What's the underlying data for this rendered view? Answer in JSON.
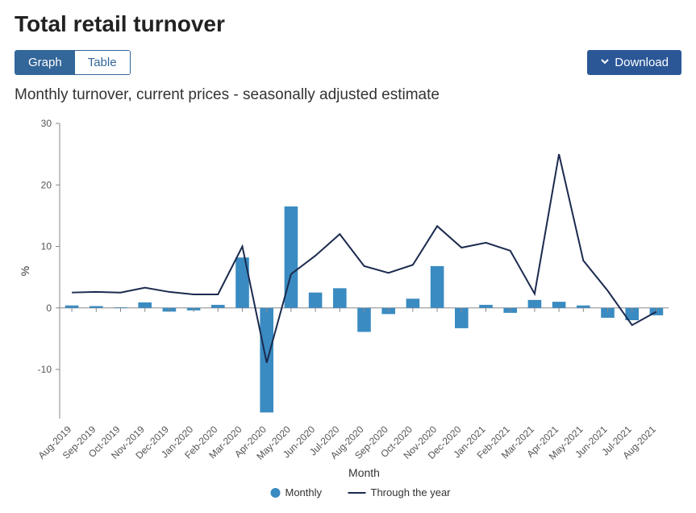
{
  "title": "Total retail turnover",
  "tabs": {
    "graph": "Graph",
    "table": "Table",
    "active": "graph"
  },
  "download": {
    "label": "Download",
    "icon": "chevron-down"
  },
  "subtitle": "Monthly turnover, current prices - seasonally adjusted estimate",
  "chart": {
    "type": "bar+line",
    "ylabel": "%",
    "xlabel": "Month",
    "ylim": [
      -18,
      30
    ],
    "yticks": [
      -10,
      0,
      10,
      20,
      30
    ],
    "categories": [
      "Aug-2019",
      "Sep-2019",
      "Oct-2019",
      "Nov-2019",
      "Dec-2019",
      "Jan-2020",
      "Feb-2020",
      "Mar-2020",
      "Apr-2020",
      "May-2020",
      "Jun-2020",
      "Jul-2020",
      "Aug-2020",
      "Sep-2020",
      "Oct-2020",
      "Nov-2020",
      "Dec-2020",
      "Jan-2021",
      "Feb-2021",
      "Mar-2021",
      "Apr-2021",
      "May-2021",
      "Jun-2021",
      "Jul-2021",
      "Aug-2021"
    ],
    "series": {
      "monthly": {
        "label": "Monthly",
        "type": "bar",
        "color": "#3a8bc1",
        "values": [
          0.4,
          0.3,
          0.1,
          0.9,
          -0.6,
          -0.4,
          0.5,
          8.2,
          -17.0,
          16.5,
          2.5,
          3.2,
          -3.9,
          -1.0,
          1.5,
          6.8,
          -3.3,
          0.5,
          -0.8,
          1.3,
          1.0,
          0.4,
          -1.6,
          -2.0,
          -1.2
        ]
      },
      "through_the_year": {
        "label": "Through the year",
        "type": "line",
        "color": "#1b2a4e",
        "line_width": 2,
        "values": [
          2.5,
          2.6,
          2.5,
          3.3,
          2.6,
          2.2,
          2.2,
          10.0,
          -8.9,
          5.5,
          8.5,
          12.0,
          6.8,
          5.7,
          7.0,
          13.3,
          9.8,
          10.6,
          9.3,
          2.3,
          25.0,
          7.7,
          2.8,
          -2.8,
          -0.6
        ]
      }
    },
    "legend": {
      "position": "bottom",
      "items": [
        "Monthly",
        "Through the year"
      ]
    },
    "plot_bg": "#ffffff",
    "axis_color": "#888888",
    "tick_font_size": 12,
    "label_font_size": 14,
    "xlabel_rotation": -45,
    "bar_width_ratio": 0.55
  }
}
